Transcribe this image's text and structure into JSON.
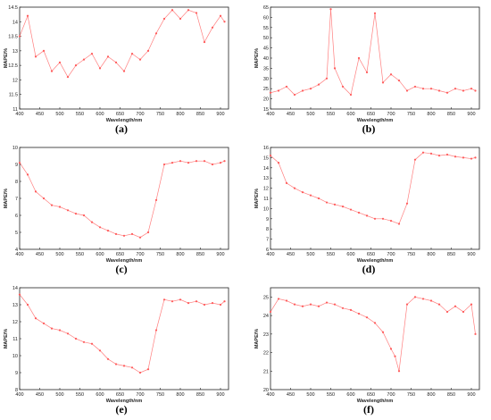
{
  "figure": {
    "panel_labels": [
      "(a)",
      "(b)",
      "(c)",
      "(d)",
      "(e)",
      "(f)"
    ]
  },
  "style": {
    "line_color": "#ff7f7f",
    "marker_color": "#ff5a5a",
    "axis_color": "#222222"
  },
  "chart_data": [
    {
      "type": "line",
      "label": "(a)",
      "xlabel": "Wavelength/nm",
      "ylabel": "MAPE/%",
      "xlim": [
        400,
        920
      ],
      "ylim": [
        11,
        14.5
      ],
      "xticks": [
        400,
        450,
        500,
        550,
        600,
        650,
        700,
        750,
        800,
        850,
        900
      ],
      "yticks": [
        11,
        11.5,
        12,
        12.5,
        13,
        13.5,
        14,
        14.5
      ],
      "x": [
        400,
        420,
        440,
        460,
        480,
        500,
        520,
        540,
        560,
        580,
        600,
        620,
        640,
        660,
        680,
        700,
        720,
        740,
        760,
        780,
        800,
        820,
        840,
        860,
        880,
        900,
        910
      ],
      "values": [
        13.5,
        14.2,
        12.8,
        13.0,
        12.3,
        12.6,
        12.1,
        12.5,
        12.7,
        12.9,
        12.4,
        12.8,
        12.6,
        12.3,
        12.9,
        12.7,
        13.0,
        13.6,
        14.1,
        14.4,
        14.1,
        14.4,
        14.3,
        13.3,
        13.8,
        14.2,
        14.0
      ]
    },
    {
      "type": "line",
      "label": "(b)",
      "xlabel": "Wavelength/nm",
      "ylabel": "MAPE/%",
      "xlim": [
        400,
        920
      ],
      "ylim": [
        15,
        65
      ],
      "xticks": [
        400,
        450,
        500,
        550,
        600,
        650,
        700,
        750,
        800,
        850,
        900
      ],
      "yticks": [
        15,
        20,
        25,
        30,
        35,
        40,
        45,
        50,
        55,
        60,
        65
      ],
      "x": [
        400,
        420,
        440,
        460,
        480,
        500,
        520,
        540,
        550,
        560,
        580,
        600,
        620,
        640,
        660,
        680,
        700,
        720,
        740,
        760,
        780,
        800,
        820,
        840,
        860,
        880,
        900,
        910
      ],
      "values": [
        23,
        24,
        26,
        22,
        24,
        25,
        27,
        30,
        64,
        35,
        26,
        22,
        40,
        33,
        62,
        28,
        32,
        29,
        24,
        26,
        25,
        25,
        24,
        23,
        25,
        24,
        25,
        24
      ]
    },
    {
      "type": "line",
      "label": "(c)",
      "xlabel": "Wavelength/nm",
      "ylabel": "MAPE/%",
      "xlim": [
        400,
        920
      ],
      "ylim": [
        4,
        10
      ],
      "xticks": [
        400,
        450,
        500,
        550,
        600,
        650,
        700,
        750,
        800,
        850,
        900
      ],
      "yticks": [
        4,
        5,
        6,
        7,
        8,
        9,
        10
      ],
      "x": [
        400,
        420,
        440,
        460,
        480,
        500,
        520,
        540,
        560,
        580,
        600,
        620,
        640,
        660,
        680,
        700,
        720,
        740,
        760,
        780,
        800,
        820,
        840,
        860,
        880,
        900,
        910
      ],
      "values": [
        9.1,
        8.4,
        7.4,
        7.0,
        6.6,
        6.5,
        6.3,
        6.1,
        6.0,
        5.6,
        5.3,
        5.1,
        4.9,
        4.8,
        4.9,
        4.7,
        5.0,
        6.9,
        9.0,
        9.1,
        9.2,
        9.1,
        9.2,
        9.2,
        9.0,
        9.1,
        9.2
      ]
    },
    {
      "type": "line",
      "label": "(d)",
      "xlabel": "Wavelength/nm",
      "ylabel": "MAPE/%",
      "xlim": [
        400,
        920
      ],
      "ylim": [
        6,
        16
      ],
      "xticks": [
        400,
        450,
        500,
        550,
        600,
        650,
        700,
        750,
        800,
        850,
        900
      ],
      "yticks": [
        6,
        7,
        8,
        9,
        10,
        11,
        12,
        13,
        14,
        15,
        16
      ],
      "x": [
        400,
        420,
        440,
        460,
        480,
        500,
        520,
        540,
        560,
        580,
        600,
        620,
        640,
        660,
        680,
        700,
        720,
        740,
        760,
        780,
        800,
        820,
        840,
        860,
        880,
        900,
        910
      ],
      "values": [
        15.2,
        14.5,
        12.5,
        12.0,
        11.6,
        11.3,
        11.0,
        10.6,
        10.4,
        10.2,
        9.9,
        9.6,
        9.3,
        9.0,
        9.0,
        8.8,
        8.5,
        10.5,
        14.8,
        15.5,
        15.4,
        15.2,
        15.3,
        15.1,
        15.0,
        14.9,
        15.0
      ]
    },
    {
      "type": "line",
      "label": "(e)",
      "xlabel": "Wavelength/nm",
      "ylabel": "MAPE/%",
      "xlim": [
        400,
        920
      ],
      "ylim": [
        8,
        14
      ],
      "xticks": [
        400,
        450,
        500,
        550,
        600,
        650,
        700,
        750,
        800,
        850,
        900
      ],
      "yticks": [
        8,
        9,
        10,
        11,
        12,
        13,
        14
      ],
      "x": [
        400,
        420,
        440,
        460,
        480,
        500,
        520,
        540,
        560,
        580,
        600,
        620,
        640,
        660,
        680,
        700,
        720,
        740,
        760,
        780,
        800,
        820,
        840,
        860,
        880,
        900,
        910
      ],
      "values": [
        13.6,
        13.0,
        12.2,
        11.9,
        11.6,
        11.5,
        11.3,
        11.0,
        10.8,
        10.7,
        10.3,
        9.8,
        9.5,
        9.4,
        9.3,
        9.0,
        9.2,
        11.5,
        13.3,
        13.2,
        13.3,
        13.1,
        13.2,
        13.0,
        13.1,
        13.0,
        13.2
      ]
    },
    {
      "type": "line",
      "label": "(f)",
      "xlabel": "Wavelength/nm",
      "ylabel": "MAPE/%",
      "xlim": [
        400,
        920
      ],
      "ylim": [
        20,
        25.5
      ],
      "xticks": [
        400,
        450,
        500,
        550,
        600,
        650,
        700,
        750,
        800,
        850,
        900
      ],
      "yticks": [
        20,
        21,
        22,
        23,
        24,
        25
      ],
      "x": [
        400,
        420,
        440,
        460,
        480,
        500,
        520,
        540,
        560,
        580,
        600,
        620,
        640,
        660,
        680,
        700,
        710,
        720,
        740,
        760,
        780,
        800,
        820,
        840,
        860,
        880,
        900,
        910
      ],
      "values": [
        24.2,
        24.9,
        24.8,
        24.6,
        24.5,
        24.6,
        24.5,
        24.7,
        24.6,
        24.4,
        24.3,
        24.1,
        23.9,
        23.6,
        23.1,
        22.2,
        21.8,
        21.0,
        24.6,
        25.0,
        24.9,
        24.8,
        24.6,
        24.2,
        24.5,
        24.2,
        24.6,
        23.0
      ]
    }
  ]
}
